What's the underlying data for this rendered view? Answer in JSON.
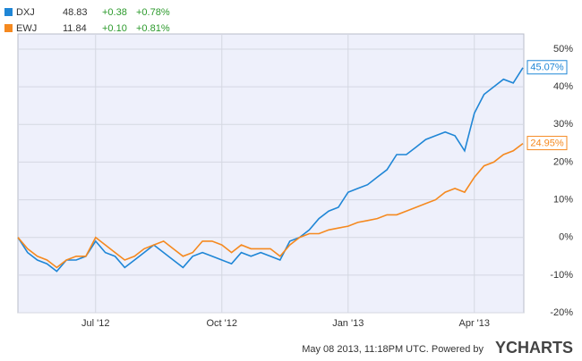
{
  "chart_data": {
    "type": "line",
    "legend": [
      {
        "last": "48.83",
        "change": "+0.38",
        "change_pct": "+0.78%"
      },
      {
        "last": "11.84",
        "change": "+0.10",
        "change_pct": "+0.81%"
      }
    ],
    "categories": [
      null,
      null,
      null,
      null,
      null,
      null,
      null,
      null,
      "Jul '12",
      null,
      null,
      null,
      null,
      null,
      null,
      null,
      null,
      null,
      null,
      null,
      null,
      "Oct '12",
      null,
      null,
      null,
      null,
      null,
      null,
      null,
      null,
      null,
      null,
      null,
      null,
      "Jan '13",
      null,
      null,
      null,
      null,
      null,
      null,
      null,
      null,
      null,
      null,
      null,
      null,
      "Apr '13",
      null,
      null,
      null,
      null,
      null
    ],
    "series": [
      {
        "name": "DXJ",
        "color": "#1f86d6",
        "values": [
          0,
          -4,
          -6,
          -7,
          -9,
          -6,
          -6,
          -5,
          -1,
          -4,
          -5,
          -8,
          -6,
          -4,
          -2,
          -4,
          -6,
          -8,
          -5,
          -4,
          -5,
          -6,
          -7,
          -4,
          -5,
          -4,
          -5,
          -6,
          -1,
          0,
          2,
          5,
          7,
          8,
          12,
          13,
          14,
          16,
          18,
          22,
          22,
          24,
          26,
          27,
          28,
          27,
          23,
          33,
          38,
          40,
          42,
          41,
          45.07
        ],
        "value_labels": [
          null,
          null,
          null,
          null,
          null,
          null,
          null,
          null,
          null,
          null,
          null,
          null,
          null,
          null,
          null,
          null,
          null,
          null,
          null,
          null,
          null,
          null,
          null,
          null,
          null,
          null,
          null,
          null,
          null,
          null,
          null,
          null,
          null,
          null,
          null,
          null,
          null,
          null,
          null,
          null,
          null,
          null,
          null,
          null,
          null,
          null,
          null,
          null,
          null,
          null,
          null,
          null,
          "45.07%"
        ]
      },
      {
        "name": "EWJ",
        "color": "#f5891f",
        "values": [
          0,
          -3,
          -5,
          -6,
          -8,
          -6,
          -5,
          -5,
          0,
          -2,
          -4,
          -6,
          -5,
          -3,
          -2,
          -1,
          -3,
          -5,
          -4,
          -1,
          -1,
          -2,
          -4,
          -2,
          -3,
          -3,
          -3,
          -5,
          -2,
          0,
          1,
          1,
          2,
          2.5,
          3,
          4,
          4.5,
          5,
          6,
          6,
          7,
          8,
          9,
          10,
          12,
          13,
          12,
          16,
          19,
          20,
          22,
          23,
          24.95
        ],
        "value_labels": [
          null,
          null,
          null,
          null,
          null,
          null,
          null,
          null,
          null,
          null,
          null,
          null,
          null,
          null,
          null,
          null,
          null,
          null,
          null,
          null,
          null,
          null,
          null,
          null,
          null,
          null,
          null,
          null,
          null,
          null,
          null,
          null,
          null,
          null,
          null,
          null,
          null,
          null,
          null,
          null,
          null,
          null,
          null,
          null,
          null,
          null,
          null,
          null,
          null,
          null,
          null,
          null,
          "24.95%"
        ]
      }
    ],
    "ylim": [
      -20,
      50
    ],
    "yticks": [
      {
        "value": -20,
        "label": "-20%"
      },
      {
        "value": -10,
        "label": "-10%"
      },
      {
        "value": 0,
        "label": "0%"
      },
      {
        "value": 10,
        "label": "10%"
      },
      {
        "value": 20,
        "label": "20%"
      },
      {
        "value": 30,
        "label": "30%"
      },
      {
        "value": 40,
        "label": "40%"
      },
      {
        "value": 50,
        "label": "50%"
      }
    ],
    "grid": true,
    "footer": "May 08 2013, 11:18PM UTC. Powered by",
    "brand": "YCHARTS"
  }
}
